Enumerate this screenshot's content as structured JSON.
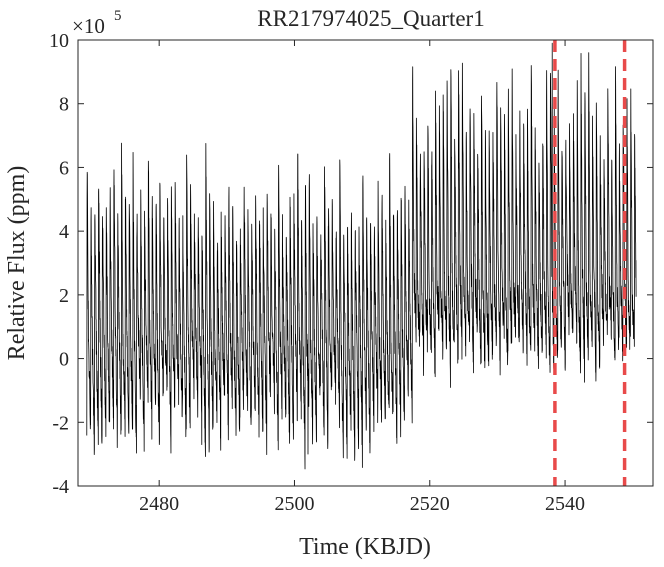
{
  "chart_data": {
    "type": "line",
    "title": "RR217974025_Quarter1",
    "xlabel": "Time (KBJD)",
    "ylabel": "Relative Flux (ppm)",
    "y_exponent_label": "×10",
    "y_exponent_power": "5",
    "xlim": [
      2468,
      2553
    ],
    "ylim": [
      -4,
      10
    ],
    "x_ticks": [
      2480,
      2500,
      2520,
      2540
    ],
    "x_tick_labels": [
      "2480",
      "2500",
      "2520",
      "2540"
    ],
    "y_ticks": [
      -4,
      -2,
      0,
      2,
      4,
      6,
      8,
      10
    ],
    "y_tick_labels": [
      "-4",
      "-2",
      "0",
      "2",
      "4",
      "6",
      "8",
      "10"
    ],
    "y_units_note": "values in units of 1e5 ppm",
    "grid": false,
    "line_color": "#000000",
    "marker_color": "#e84a4a",
    "event_markers_x": [
      2538.5,
      2548.8
    ],
    "series": [
      {
        "x_start": 2469.3,
        "x_end": 2550.5,
        "pulsation_period_days": 0.566,
        "segments": [
          {
            "x_range": [
              2469.3,
              2517.2
            ],
            "peak_max": [
              3.8,
              6.6
            ],
            "trough_min": [
              -3.1,
              -0.8
            ],
            "baseline": [
              0.4,
              1.2
            ]
          },
          {
            "x_range": [
              2517.2,
              2550.5
            ],
            "peak_max": [
              6.5,
              9.9
            ],
            "trough_min": [
              -0.6,
              1.2
            ],
            "baseline": [
              1.8,
              3.0
            ]
          }
        ],
        "extreme_points": [
          {
            "x": 2538.1,
            "y": 9.9
          },
          {
            "x": 2502.0,
            "y": -3.0
          },
          {
            "x": 2486.3,
            "y": -2.7
          }
        ]
      }
    ]
  }
}
